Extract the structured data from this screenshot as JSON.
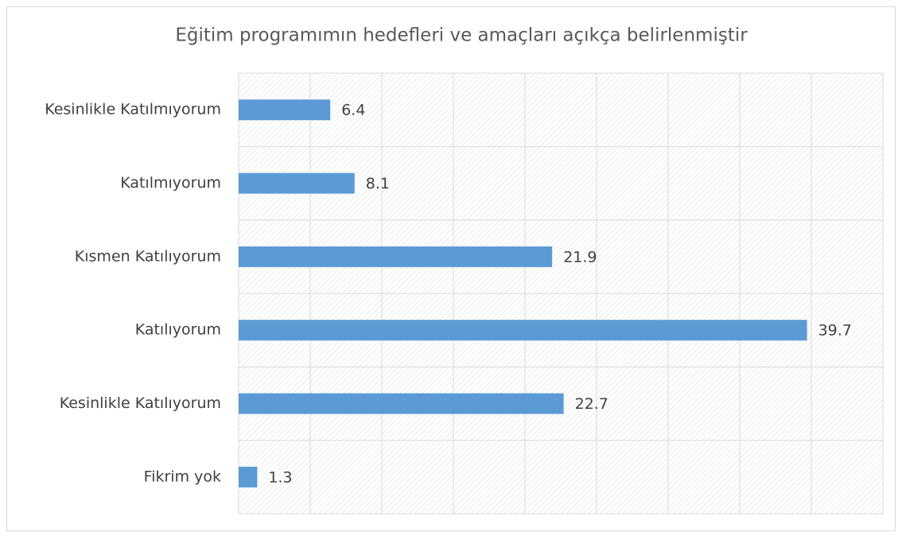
{
  "chart_data": {
    "type": "bar",
    "orientation": "horizontal",
    "title": "Eğitim programımın hedefleri ve amaçları açıkça belirlenmiştir",
    "categories": [
      "Kesinlikle Katılmıyorum",
      "Katılmıyorum",
      "Kısmen Katılıyorum",
      "Katılıyorum",
      "Kesinlikle Katılıyorum",
      "Fikrim yok"
    ],
    "values": [
      6.4,
      8.1,
      21.9,
      39.7,
      22.7,
      1.3
    ],
    "color": "#5b9bd5",
    "xlim": [
      0,
      45
    ],
    "xticks": [
      0,
      5,
      10,
      15,
      20,
      25,
      30,
      35,
      40,
      45
    ],
    "grid": true
  }
}
